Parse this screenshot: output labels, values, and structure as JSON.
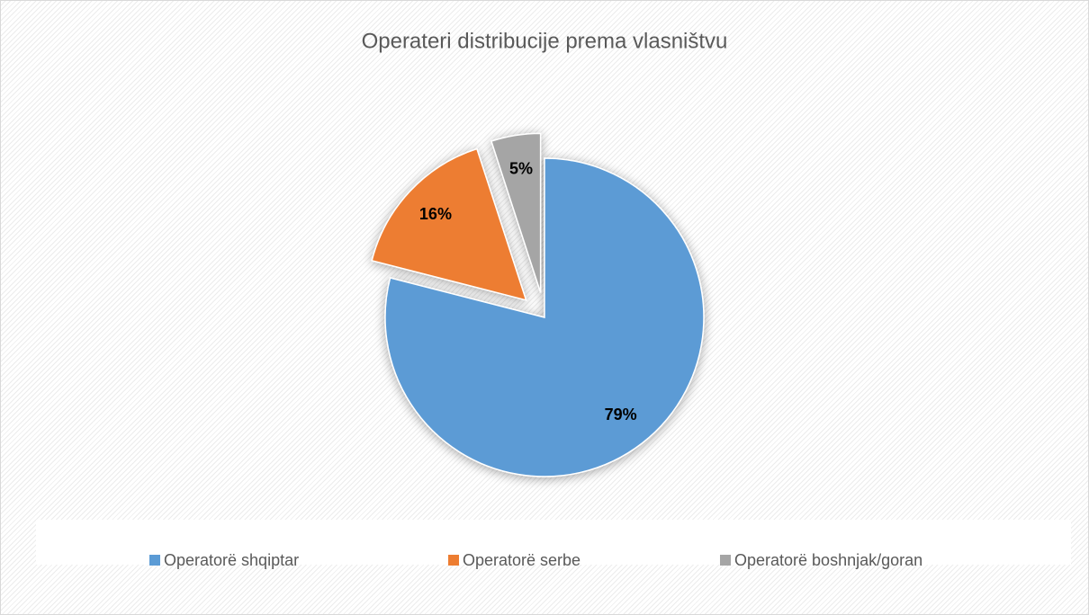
{
  "chart_data": {
    "type": "pie",
    "title": "Operateri distribucije prema vlasništvu",
    "categories": [
      "Operatorë shqiptar",
      "Operatorë serbe",
      "Operatorë boshnjak/goran"
    ],
    "values": [
      79,
      16,
      5
    ],
    "value_labels": [
      "79%",
      "16%",
      "5%"
    ],
    "colors": [
      "#5b9bd5",
      "#ed7d31",
      "#a5a5a5"
    ],
    "exploded": [
      false,
      true,
      true
    ],
    "legend": "bottom"
  }
}
